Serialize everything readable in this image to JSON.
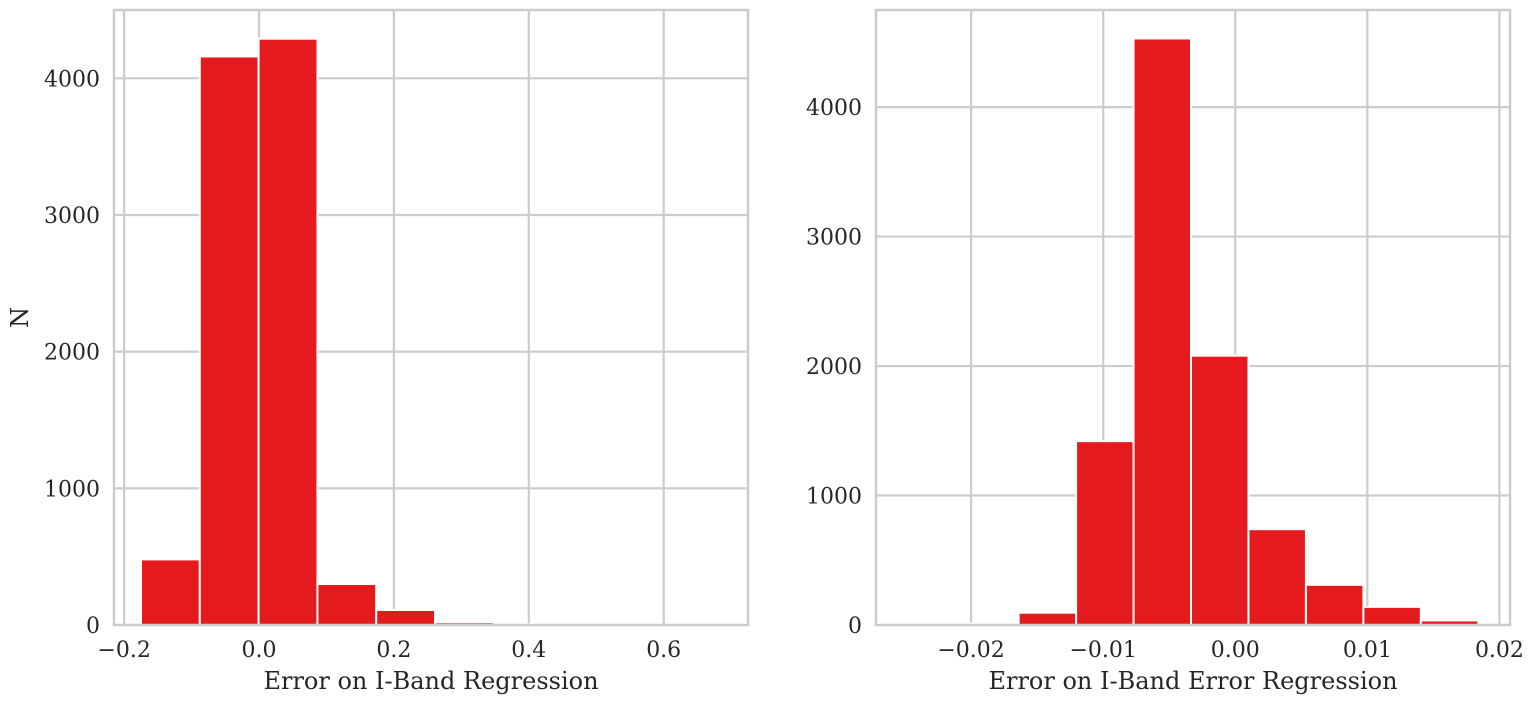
{
  "style": {
    "bar_color": "#e41a1c",
    "grid_color": "#cccccc",
    "spine_color": "#cccccc",
    "text_color": "#262626",
    "background": "#ffffff"
  },
  "chart_data": [
    {
      "type": "bar",
      "histogram": true,
      "title": "",
      "xlabel": "Error on I-Band Regression",
      "ylabel": "N",
      "xlim": [
        -0.215,
        0.725
      ],
      "ylim": [
        0,
        4500
      ],
      "xticks": [
        -0.2,
        0.0,
        0.2,
        0.4,
        0.6
      ],
      "xtick_labels": [
        "−0.2",
        "0.0",
        "0.2",
        "0.4",
        "0.6"
      ],
      "yticks": [
        0,
        1000,
        2000,
        3000,
        4000
      ],
      "ytick_labels": [
        "0",
        "1000",
        "2000",
        "3000",
        "4000"
      ],
      "grid": true,
      "bin_edges": [
        -0.175,
        -0.0878,
        -0.0006,
        0.0866,
        0.1738,
        0.261,
        0.3482,
        0.4354,
        0.5226,
        0.6098,
        0.697
      ],
      "values": [
        480,
        4160,
        4290,
        300,
        110,
        20,
        5,
        4,
        2,
        1
      ]
    },
    {
      "type": "bar",
      "histogram": true,
      "title": "",
      "xlabel": "Error on I-Band Error Regression",
      "ylabel": "",
      "xlim": [
        -0.0272,
        0.0208
      ],
      "ylim": [
        0,
        4750
      ],
      "xticks": [
        -0.02,
        -0.01,
        0.0,
        0.01,
        0.02
      ],
      "xtick_labels": [
        "−0.02",
        "−0.01",
        "0.00",
        "0.01",
        "0.02"
      ],
      "yticks": [
        0,
        1000,
        2000,
        3000,
        4000
      ],
      "ytick_labels": [
        "0",
        "1000",
        "2000",
        "3000",
        "4000"
      ],
      "grid": true,
      "bin_edges": [
        -0.0251,
        -0.02075,
        -0.0164,
        -0.01205,
        -0.0077,
        -0.00335,
        0.001,
        0.00535,
        0.0097,
        0.01405,
        0.0184
      ],
      "values": [
        8,
        12,
        95,
        1420,
        4530,
        2080,
        740,
        310,
        140,
        35
      ]
    }
  ]
}
